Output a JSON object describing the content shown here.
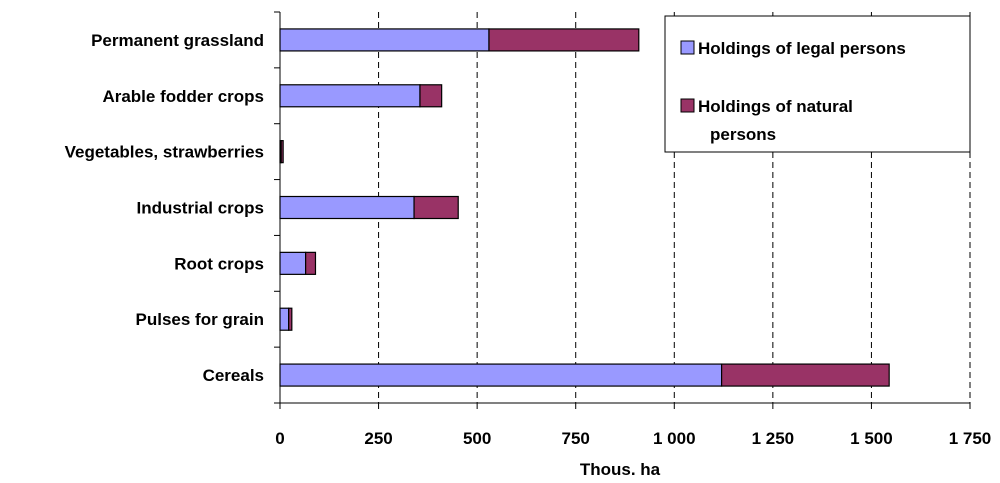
{
  "chart_data": {
    "type": "bar",
    "orientation": "horizontal",
    "stacked": true,
    "categories": [
      "Permanent grassland",
      "Arable fodder crops",
      "Vegetables, strawberries",
      "Industrial crops",
      "Root crops",
      "Pulses for grain",
      "Cereals"
    ],
    "series": [
      {
        "name": "Holdings of legal persons",
        "color": "#9999ff",
        "values": [
          530,
          355,
          3,
          340,
          65,
          22,
          1120
        ]
      },
      {
        "name": "Holdings of natural persons",
        "color": "#993366",
        "values": [
          380,
          55,
          5,
          112,
          25,
          8,
          425
        ]
      }
    ],
    "xlabel": "Thous. ha",
    "xlim": [
      0,
      1750
    ],
    "xticks": [
      0,
      250,
      500,
      750,
      1000,
      1250,
      1500,
      1750
    ],
    "xtick_labels": [
      "0",
      "250",
      "500",
      "750",
      "1 000",
      "1 250",
      "1 500",
      "1 750"
    ],
    "grid": "vertical dashed",
    "legend_position": "top-right",
    "legend_labels": [
      "Holdings of legal persons",
      "Holdings of natural",
      "persons"
    ]
  }
}
